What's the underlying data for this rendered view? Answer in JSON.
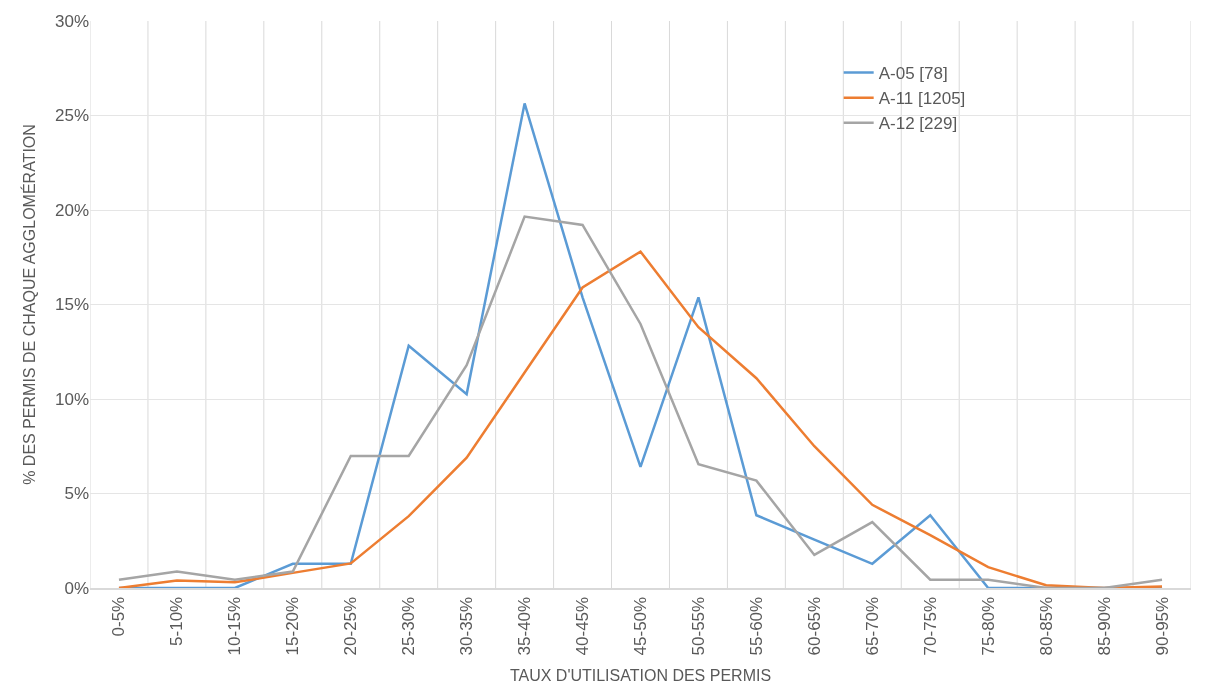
{
  "chart_data": {
    "type": "line",
    "xlabel": "TAUX D'UTILISATION DES PERMIS",
    "ylabel": "% DES PERMIS DE CHAQUE AGGLOMÉRATION",
    "categories": [
      "0-5%",
      "5-10%",
      "10-15%",
      "15-20%",
      "20-25%",
      "25-30%",
      "30-35%",
      "35-40%",
      "40-45%",
      "45-50%",
      "50-55%",
      "55-60%",
      "60-65%",
      "65-70%",
      "70-75%",
      "75-80%",
      "80-85%",
      "85-90%",
      "90-95%"
    ],
    "series": [
      {
        "name": "A-05 [78]",
        "color": "#5b9bd5",
        "values": [
          0,
          0,
          0,
          1.28,
          1.28,
          12.82,
          10.26,
          25.64,
          15.38,
          6.41,
          15.38,
          3.85,
          2.56,
          1.28,
          3.85,
          0,
          0,
          0,
          0
        ]
      },
      {
        "name": "A-11 [1205]",
        "color": "#ed7d31",
        "values": [
          0,
          0.4,
          0.3,
          0.8,
          1.3,
          3.8,
          6.9,
          11.4,
          15.9,
          17.8,
          13.8,
          11.1,
          7.5,
          4.4,
          2.8,
          1.1,
          0.15,
          0,
          0.08
        ]
      },
      {
        "name": "A-12 [229]",
        "color": "#a5a5a5",
        "values": [
          0.44,
          0.87,
          0.44,
          0.87,
          6.99,
          6.99,
          11.79,
          19.65,
          19.21,
          13.97,
          6.55,
          5.68,
          1.75,
          3.49,
          0.44,
          0.44,
          0,
          0,
          0.44
        ]
      }
    ],
    "ylim": [
      0,
      30
    ],
    "yticks": [
      {
        "value": 0,
        "label": "0%"
      },
      {
        "value": 5,
        "label": "5%"
      },
      {
        "value": 10,
        "label": "10%"
      },
      {
        "value": 15,
        "label": "15%"
      },
      {
        "value": 20,
        "label": "20%"
      },
      {
        "value": 25,
        "label": "25%"
      },
      {
        "value": 30,
        "label": "30%"
      }
    ],
    "grid": true,
    "legend": "top right",
    "marker": "none",
    "line_style": "solid"
  }
}
